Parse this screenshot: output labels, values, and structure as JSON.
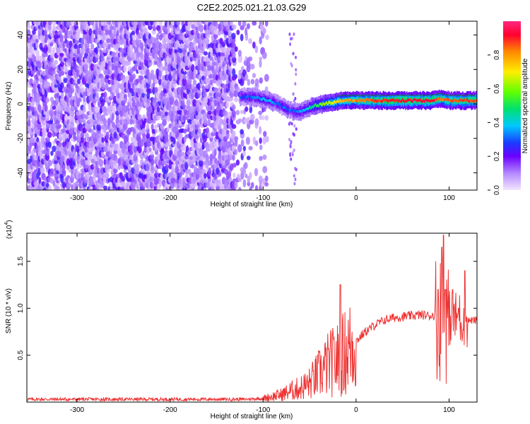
{
  "title": "C2E2.2025.021.21.03.G29",
  "chart_data": [
    {
      "type": "heatmap",
      "xlabel": "Height of straight line (km)",
      "ylabel": "Frequency (Hz)",
      "xlim": [
        -354,
        130
      ],
      "ylim": [
        -50,
        48
      ],
      "xticks": [
        -300,
        -200,
        -100,
        0,
        100
      ],
      "yticks": [
        -40,
        -20,
        0,
        20,
        40
      ],
      "colorbar": {
        "label": "Normalized spectral amplitude",
        "range": [
          0,
          1
        ],
        "ticks": [
          "0.0",
          "0.2",
          "0.4",
          "0.6",
          "0.8"
        ],
        "colormap": [
          "#f0d8ff",
          "#a070ff",
          "#6a00ff",
          "#1a3cff",
          "#00c8ff",
          "#00e060",
          "#80ff00",
          "#ffee00",
          "#ff8800",
          "#ff0033",
          "#ff2080"
        ]
      },
      "ridge": {
        "description_points_x": [
          -125,
          -110,
          -95,
          -85,
          -78,
          -70,
          -62,
          -55,
          -45,
          -35,
          -25,
          -15,
          0,
          20,
          40,
          60,
          80,
          90,
          100,
          115,
          130
        ],
        "frequency": [
          4,
          4,
          2,
          0,
          -2,
          -4,
          -5,
          -3,
          -1,
          0,
          1,
          2,
          2,
          2,
          2,
          2,
          2,
          3,
          2,
          2,
          2
        ],
        "amplitude": [
          0.3,
          0.35,
          0.4,
          0.3,
          0.35,
          0.3,
          0.35,
          0.4,
          0.5,
          0.6,
          0.7,
          0.75,
          0.8,
          0.85,
          0.9,
          0.9,
          0.9,
          0.8,
          0.85,
          0.85,
          0.85
        ]
      },
      "noise_region_x": [
        -354,
        -95
      ]
    },
    {
      "type": "line",
      "xlabel": "Height of straight line (km)",
      "ylabel": "SNR (10 * v/v)",
      "ymultiplier": "(x10",
      "ymultiplier_exp": "4",
      "xlim": [
        -354,
        130
      ],
      "ylim": [
        0,
        18000
      ],
      "xticks": [
        -300,
        -200,
        -100,
        0,
        100
      ],
      "yticks": [
        "0.5",
        "1.0",
        "1.5"
      ],
      "ytick_values": [
        5000,
        10000,
        15000
      ],
      "color": "#ee3333",
      "series": [
        {
          "x": [
            -354,
            -120,
            -100,
            -80,
            -70,
            -60,
            -50,
            -40,
            -30,
            -20,
            -10,
            0,
            10,
            20,
            30,
            40,
            50,
            60,
            70,
            80,
            85,
            90,
            95,
            100,
            110,
            115,
            120,
            130
          ],
          "y": [
            300,
            300,
            400,
            800,
            1200,
            1500,
            2000,
            3000,
            4000,
            4500,
            5500,
            6500,
            7500,
            8200,
            8700,
            9000,
            9100,
            9200,
            9300,
            9200,
            9300,
            9000,
            8800,
            9000,
            8900,
            9000,
            8700,
            8700
          ]
        }
      ],
      "spikes_x": [
        -17,
        88,
        92,
        94,
        96,
        104,
        110,
        117
      ],
      "spikes_y": [
        12500,
        12000,
        16500,
        17800,
        12000,
        12000,
        10000,
        14000
      ]
    }
  ]
}
